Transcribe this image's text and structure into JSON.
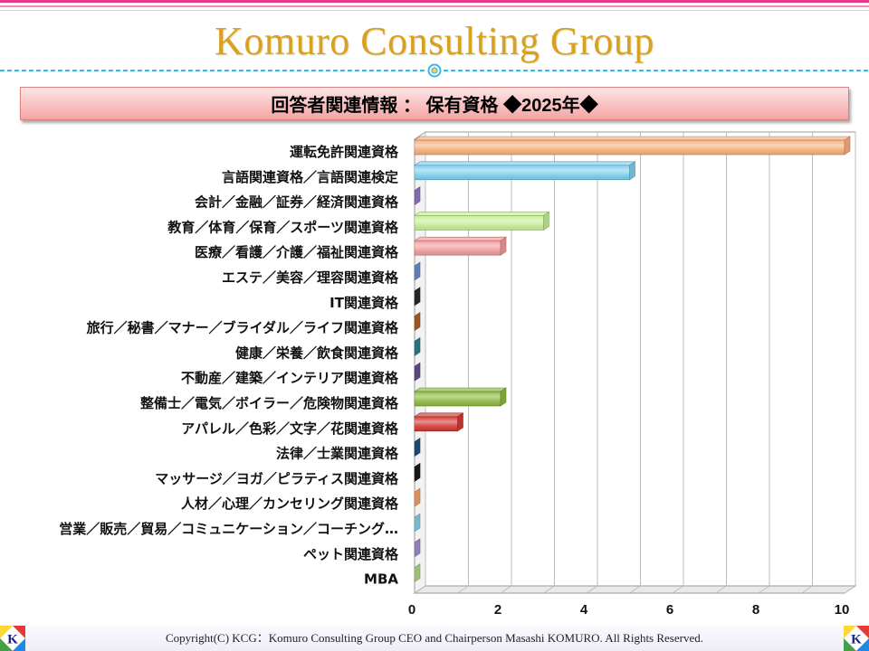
{
  "header": {
    "title": "Komuro Consulting Group"
  },
  "banner": {
    "text": "回答者関連情報 ： 保有資格 ◆2025年◆"
  },
  "chart_data": {
    "type": "bar",
    "orientation": "horizontal",
    "three_d": true,
    "categories": [
      "運転免許関連資格",
      "言語関連資格／言語関連検定",
      "会計／金融／証券／経済関連資格",
      "教育／体育／保育／スポーツ関連資格",
      "医療／看護／介護／福祉関連資格",
      "エステ／美容／理容関連資格",
      "IT関連資格",
      "旅行／秘書／マナー／ブライダル／ライフ関連資格",
      "健康／栄養／飲食関連資格",
      "不動産／建築／インテリア関連資格",
      "整備士／電気／ボイラー／危険物関連資格",
      "アパレル／色彩／文字／花関連資格",
      "法律／士業関連資格",
      "マッサージ／ヨガ／ピラティス関連資格",
      "人材／心理／カンセリング関連資格",
      "営業／販売／貿易／コミュニケーション／コーチング…",
      "ペット関連資格",
      "MBA"
    ],
    "values": [
      10,
      5,
      0,
      3,
      2,
      0,
      0,
      0,
      0,
      0,
      2,
      1,
      0,
      0,
      0,
      0,
      0,
      0
    ],
    "colors": [
      "#F7B07E",
      "#7FD0EE",
      "#8E7CC3",
      "#C6EF95",
      "#F29C9C",
      "#6E8FCB",
      "#2B2B2B",
      "#B0612A",
      "#2E8290",
      "#6A4E92",
      "#8DBA3F",
      "#D23A35",
      "#23507E",
      "#1A1A1A",
      "#F6A46B",
      "#8AD2EA",
      "#A48ED2",
      "#B5D98C"
    ],
    "xlim": [
      0,
      10
    ],
    "xticks": [
      0,
      2,
      4,
      6,
      8,
      10
    ],
    "grid": true
  },
  "footer": {
    "copyright": "Copyright(C) KCG：Komuro Consulting Group CEO and Chairperson Masashi KOMURO. All Rights Reserved.",
    "logo_letter": "K"
  },
  "icons": {
    "divider": "target-circle-icon",
    "logo": "kcg-logo-icon"
  },
  "theme": {
    "title_color": "#D6A21F",
    "divider_color": "#3DB5E2",
    "banner_top": "#FDE6E6",
    "banner_bottom": "#F5A3A3",
    "stripe_color": "#E63A8F"
  }
}
